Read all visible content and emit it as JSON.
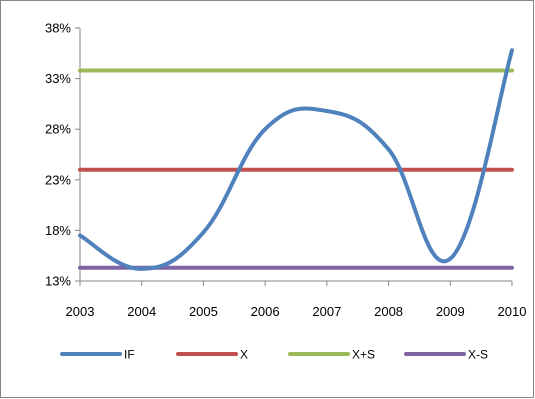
{
  "chart_data": {
    "type": "line",
    "x": [
      "2003",
      "2004",
      "2005",
      "2006",
      "2007",
      "2008",
      "2009",
      "2010"
    ],
    "y_ticks": [
      "13%",
      "18%",
      "23%",
      "28%",
      "33%",
      "38%"
    ],
    "ylim": [
      13,
      38
    ],
    "y_unit": "%",
    "grid": false,
    "legend_position": "bottom",
    "series": [
      {
        "name": "IF",
        "color": "#4f81bd",
        "values": [
          17.5,
          14.2,
          17.8,
          28.0,
          29.8,
          26.0,
          15.2,
          35.8
        ]
      },
      {
        "name": "X",
        "color": "#c0504d",
        "values": [
          24.0,
          24.0,
          24.0,
          24.0,
          24.0,
          24.0,
          24.0,
          24.0
        ]
      },
      {
        "name": "X+S",
        "color": "#9bbb59",
        "values": [
          33.8,
          33.8,
          33.8,
          33.8,
          33.8,
          33.8,
          33.8,
          33.8
        ]
      },
      {
        "name": "X-S",
        "color": "#8064a2",
        "values": [
          14.3,
          14.3,
          14.3,
          14.3,
          14.3,
          14.3,
          14.3,
          14.3
        ]
      }
    ]
  }
}
